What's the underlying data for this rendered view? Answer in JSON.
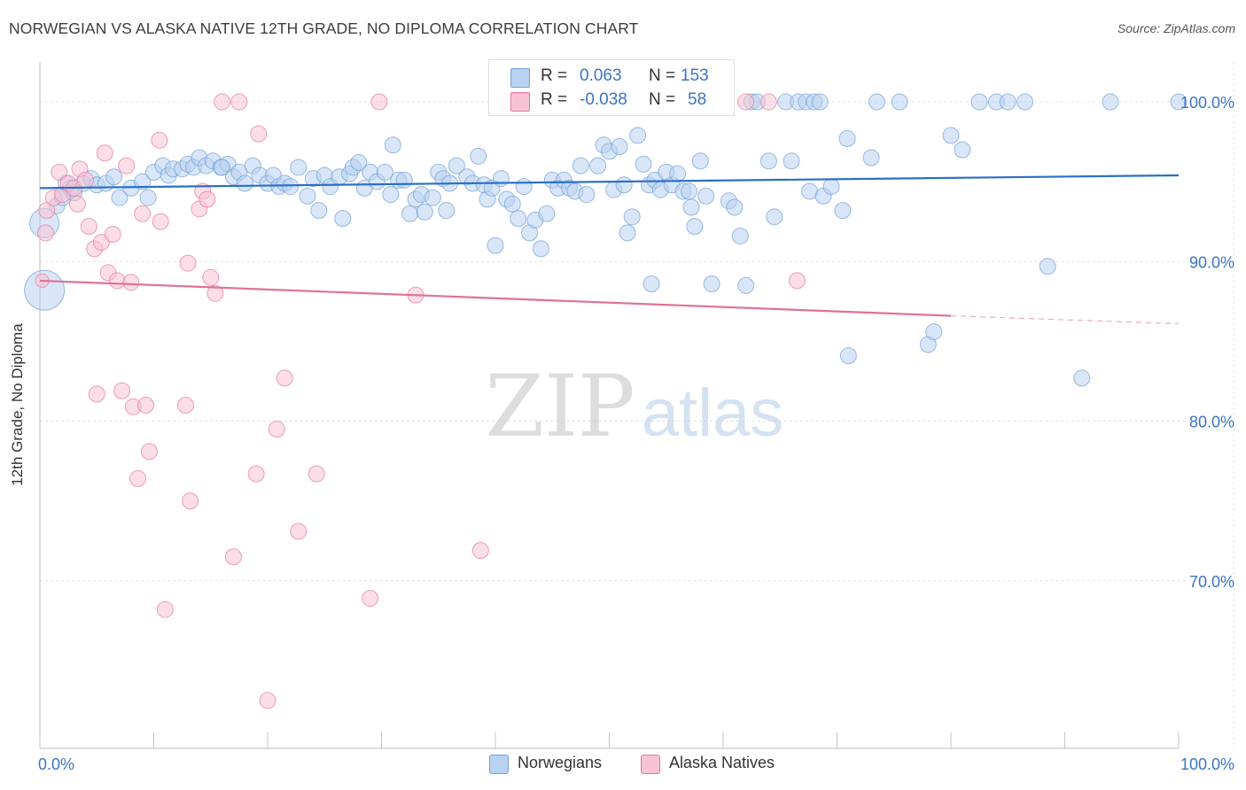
{
  "title": "NORWEGIAN VS ALASKA NATIVE 12TH GRADE, NO DIPLOMA CORRELATION CHART",
  "source": "Source: ZipAtlas.com",
  "watermark": {
    "zip": "ZIP",
    "atlas": "atlas"
  },
  "colors": {
    "blue": "#6fa0dc",
    "blue_fill": "#b9d2f1",
    "pink": "#e8779d",
    "pink_fill": "#f7c3d4",
    "blue_text": "#3a75c4",
    "blue_line": "#2a6fc9",
    "pink_line": "#e0709a"
  },
  "legend": {
    "rows": [
      {
        "r_label": "R =",
        "r_value": "0.063",
        "n_label": "N =",
        "n_value": "153"
      },
      {
        "r_label": "R =",
        "r_value": "-0.038",
        "n_label": "N =",
        "n_value": "58"
      }
    ]
  },
  "bottom_legend": [
    "Norwegians",
    "Alaska Natives"
  ],
  "chart_data": {
    "type": "scatter",
    "title": "NORWEGIAN VS ALASKA NATIVE 12TH GRADE, NO DIPLOMA CORRELATION CHART",
    "xlabel": "",
    "ylabel": "12th Grade, No Diploma",
    "xlim": [
      0,
      100
    ],
    "ylim": [
      59.5,
      102.5
    ],
    "x_tick_labels": [
      "0.0%",
      "100.0%"
    ],
    "y_ticks": [
      100,
      90,
      80,
      70
    ],
    "y_tick_labels": [
      "100.0%",
      "90.0%",
      "80.0%",
      "70.0%"
    ],
    "grid": true,
    "series": [
      {
        "name": "Norwegians",
        "stats": {
          "R": 0.063,
          "N": 153
        },
        "trend": {
          "x": [
            0,
            100
          ],
          "y": [
            94.6,
            95.4
          ]
        },
        "points": [
          [
            0.4,
            92.4,
            22
          ],
          [
            0.4,
            88.2,
            30
          ],
          [
            1.5,
            93.5,
            12
          ],
          [
            2.0,
            94.0,
            12
          ],
          [
            2.3,
            94.9,
            12
          ],
          [
            2.7,
            94.6,
            12
          ],
          [
            3.0,
            94.3,
            12
          ],
          [
            3.8,
            94.9,
            12
          ],
          [
            4.5,
            95.2,
            12
          ],
          [
            5.0,
            94.8,
            12
          ],
          [
            5.8,
            94.9,
            12
          ],
          [
            6.5,
            95.3,
            12
          ],
          [
            7.0,
            94.0,
            12
          ],
          [
            8.0,
            94.6,
            12
          ],
          [
            9.0,
            95.0,
            12
          ],
          [
            9.5,
            94.0,
            12
          ],
          [
            10.0,
            95.6,
            12
          ],
          [
            10.8,
            96.0,
            12
          ],
          [
            11.3,
            95.4,
            12
          ],
          [
            11.7,
            95.8,
            12
          ],
          [
            12.5,
            95.8,
            12
          ],
          [
            13.0,
            96.1,
            12
          ],
          [
            13.5,
            95.9,
            12
          ],
          [
            14.0,
            96.5,
            12
          ],
          [
            14.6,
            96.0,
            12
          ],
          [
            15.2,
            96.3,
            12
          ],
          [
            15.9,
            95.9,
            12
          ],
          [
            16.5,
            96.1,
            12
          ],
          [
            16.0,
            95.9,
            12
          ],
          [
            17.0,
            95.3,
            12
          ],
          [
            17.5,
            95.6,
            12
          ],
          [
            18.0,
            94.9,
            12
          ],
          [
            18.7,
            96.0,
            12
          ],
          [
            19.3,
            95.4,
            12
          ],
          [
            20.0,
            94.9,
            12
          ],
          [
            20.5,
            95.4,
            12
          ],
          [
            21.0,
            94.7,
            12
          ],
          [
            21.5,
            94.9,
            12
          ],
          [
            22.0,
            94.7,
            12
          ],
          [
            22.7,
            95.9,
            12
          ],
          [
            23.5,
            94.1,
            12
          ],
          [
            24.0,
            95.2,
            12
          ],
          [
            24.5,
            93.2,
            12
          ],
          [
            25.0,
            95.4,
            12
          ],
          [
            25.5,
            94.7,
            12
          ],
          [
            26.3,
            95.3,
            12
          ],
          [
            26.6,
            92.7,
            12
          ],
          [
            27.2,
            95.5,
            12
          ],
          [
            27.5,
            95.9,
            12
          ],
          [
            28.0,
            96.2,
            12
          ],
          [
            28.5,
            94.6,
            12
          ],
          [
            29.0,
            95.6,
            12
          ],
          [
            29.6,
            95.0,
            12
          ],
          [
            30.3,
            95.6,
            12
          ],
          [
            30.8,
            94.2,
            12
          ],
          [
            31.0,
            97.3,
            12
          ],
          [
            31.5,
            95.1,
            12
          ],
          [
            32.0,
            95.1,
            12
          ],
          [
            32.5,
            93.0,
            12
          ],
          [
            33.0,
            93.9,
            12
          ],
          [
            33.5,
            94.2,
            12
          ],
          [
            33.8,
            93.1,
            12
          ],
          [
            34.5,
            94.0,
            12
          ],
          [
            35.0,
            95.6,
            12
          ],
          [
            35.4,
            95.2,
            12
          ],
          [
            35.7,
            93.2,
            12
          ],
          [
            36.0,
            94.9,
            12
          ],
          [
            36.6,
            96.0,
            12
          ],
          [
            37.5,
            95.3,
            12
          ],
          [
            38.0,
            94.9,
            12
          ],
          [
            38.5,
            96.6,
            12
          ],
          [
            39.0,
            94.8,
            12
          ],
          [
            39.3,
            93.9,
            12
          ],
          [
            39.7,
            94.6,
            12
          ],
          [
            40.0,
            91.0,
            12
          ],
          [
            40.5,
            95.2,
            12
          ],
          [
            41.0,
            93.9,
            12
          ],
          [
            41.5,
            93.6,
            12
          ],
          [
            42.0,
            92.7,
            12
          ],
          [
            42.5,
            94.7,
            12
          ],
          [
            43.0,
            91.8,
            12
          ],
          [
            43.5,
            92.6,
            12
          ],
          [
            44.0,
            90.8,
            12
          ],
          [
            44.5,
            93.0,
            12
          ],
          [
            45.0,
            95.1,
            12
          ],
          [
            45.5,
            94.6,
            12
          ],
          [
            46.0,
            95.1,
            12
          ],
          [
            46.5,
            94.6,
            12
          ],
          [
            47.0,
            94.4,
            12
          ],
          [
            47.5,
            96.0,
            12
          ],
          [
            48.0,
            94.2,
            12
          ],
          [
            49.0,
            96.0,
            12
          ],
          [
            49.5,
            97.3,
            12
          ],
          [
            50.0,
            96.9,
            12
          ],
          [
            50.4,
            94.5,
            12
          ],
          [
            50.9,
            97.2,
            12
          ],
          [
            51.3,
            94.8,
            12
          ],
          [
            51.6,
            91.8,
            12
          ],
          [
            52.0,
            92.8,
            12
          ],
          [
            52.5,
            97.9,
            12
          ],
          [
            53.0,
            96.1,
            12
          ],
          [
            53.5,
            94.8,
            12
          ],
          [
            53.7,
            88.6,
            12
          ],
          [
            54.0,
            95.1,
            12
          ],
          [
            54.5,
            94.5,
            12
          ],
          [
            55.0,
            95.6,
            12
          ],
          [
            55.5,
            94.8,
            12
          ],
          [
            56.0,
            95.5,
            12
          ],
          [
            56.5,
            94.4,
            12
          ],
          [
            57.0,
            94.4,
            12
          ],
          [
            57.2,
            93.4,
            12
          ],
          [
            57.5,
            92.2,
            12
          ],
          [
            58.0,
            96.3,
            12
          ],
          [
            58.5,
            94.1,
            12
          ],
          [
            59.0,
            88.6,
            12
          ],
          [
            60.5,
            93.8,
            12
          ],
          [
            61.0,
            93.4,
            12
          ],
          [
            61.5,
            91.6,
            12
          ],
          [
            62.0,
            88.5,
            12
          ],
          [
            62.5,
            100.0,
            12
          ],
          [
            63.0,
            100.0,
            12
          ],
          [
            64.0,
            96.3,
            12
          ],
          [
            64.5,
            92.8,
            12
          ],
          [
            65.5,
            100.0,
            12
          ],
          [
            66.0,
            96.3,
            12
          ],
          [
            66.6,
            100.0,
            12
          ],
          [
            67.3,
            100.0,
            12
          ],
          [
            67.6,
            94.4,
            12
          ],
          [
            68.0,
            100.0,
            12
          ],
          [
            68.5,
            100.0,
            12
          ],
          [
            68.8,
            94.1,
            12
          ],
          [
            69.5,
            94.7,
            12
          ],
          [
            70.5,
            93.2,
            12
          ],
          [
            70.9,
            97.7,
            12
          ],
          [
            71.0,
            84.1,
            12
          ],
          [
            73.0,
            96.5,
            12
          ],
          [
            73.5,
            100.0,
            12
          ],
          [
            75.5,
            100.0,
            12
          ],
          [
            78.0,
            84.8,
            12
          ],
          [
            78.5,
            85.6,
            12
          ],
          [
            80.0,
            97.9,
            12
          ],
          [
            81.0,
            97.0,
            12
          ],
          [
            82.5,
            100.0,
            12
          ],
          [
            84.0,
            100.0,
            12
          ],
          [
            86.5,
            100.0,
            12
          ],
          [
            88.5,
            89.7,
            12
          ],
          [
            91.5,
            82.7,
            12
          ],
          [
            94.0,
            100.0,
            12
          ],
          [
            100.0,
            100.0,
            12
          ],
          [
            85.0,
            100.0,
            12
          ],
          [
            58.0,
            100.0,
            12
          ]
        ]
      },
      {
        "name": "Alaska Natives",
        "stats": {
          "R": -0.038,
          "N": 58
        },
        "trend": {
          "x": [
            0,
            80
          ],
          "y": [
            88.8,
            86.6
          ]
        },
        "trend_dashed": {
          "x": [
            80,
            100
          ],
          "y": [
            86.6,
            86.1
          ]
        },
        "points": [
          [
            0.2,
            88.8,
            10
          ],
          [
            0.5,
            91.8,
            12
          ],
          [
            0.6,
            93.2,
            12
          ],
          [
            1.2,
            94.0,
            12
          ],
          [
            1.7,
            95.6,
            12
          ],
          [
            2.0,
            94.2,
            12
          ],
          [
            2.5,
            94.9,
            12
          ],
          [
            3.0,
            94.6,
            12
          ],
          [
            3.3,
            93.6,
            12
          ],
          [
            3.5,
            95.8,
            12
          ],
          [
            4.0,
            95.1,
            12
          ],
          [
            4.3,
            92.2,
            12
          ],
          [
            4.8,
            90.8,
            12
          ],
          [
            5.0,
            81.7,
            12
          ],
          [
            5.4,
            91.2,
            12
          ],
          [
            5.7,
            96.8,
            12
          ],
          [
            6.0,
            89.3,
            12
          ],
          [
            6.4,
            91.7,
            12
          ],
          [
            6.8,
            88.8,
            12
          ],
          [
            7.2,
            81.9,
            12
          ],
          [
            7.6,
            96.0,
            12
          ],
          [
            8.0,
            88.7,
            12
          ],
          [
            8.2,
            80.9,
            12
          ],
          [
            8.6,
            76.4,
            12
          ],
          [
            9.0,
            93.0,
            12
          ],
          [
            9.3,
            81.0,
            12
          ],
          [
            9.6,
            78.1,
            12
          ],
          [
            10.5,
            97.6,
            12
          ],
          [
            10.6,
            92.5,
            12
          ],
          [
            11.0,
            68.2,
            12
          ],
          [
            12.8,
            81.0,
            12
          ],
          [
            13.0,
            89.9,
            12
          ],
          [
            13.2,
            75.0,
            12
          ],
          [
            14.0,
            93.3,
            12
          ],
          [
            14.3,
            94.4,
            12
          ],
          [
            14.7,
            93.9,
            12
          ],
          [
            15.0,
            89.0,
            12
          ],
          [
            15.4,
            88.0,
            12
          ],
          [
            16.0,
            100.0,
            12
          ],
          [
            17.0,
            71.5,
            12
          ],
          [
            17.5,
            100.0,
            12
          ],
          [
            19.0,
            76.7,
            12
          ],
          [
            19.2,
            98.0,
            12
          ],
          [
            20.0,
            62.5,
            12
          ],
          [
            20.8,
            79.5,
            12
          ],
          [
            21.5,
            82.7,
            12
          ],
          [
            22.7,
            73.1,
            12
          ],
          [
            24.3,
            76.7,
            12
          ],
          [
            29.0,
            68.9,
            12
          ],
          [
            29.8,
            100.0,
            12
          ],
          [
            33.0,
            87.9,
            12
          ],
          [
            38.7,
            71.9,
            12
          ],
          [
            41.0,
            100.0,
            12
          ],
          [
            44.0,
            100.0,
            12
          ],
          [
            48.0,
            100.0,
            12
          ],
          [
            62.0,
            100.0,
            12
          ],
          [
            66.5,
            88.8,
            12
          ],
          [
            64.0,
            100.0,
            12
          ]
        ]
      }
    ]
  }
}
